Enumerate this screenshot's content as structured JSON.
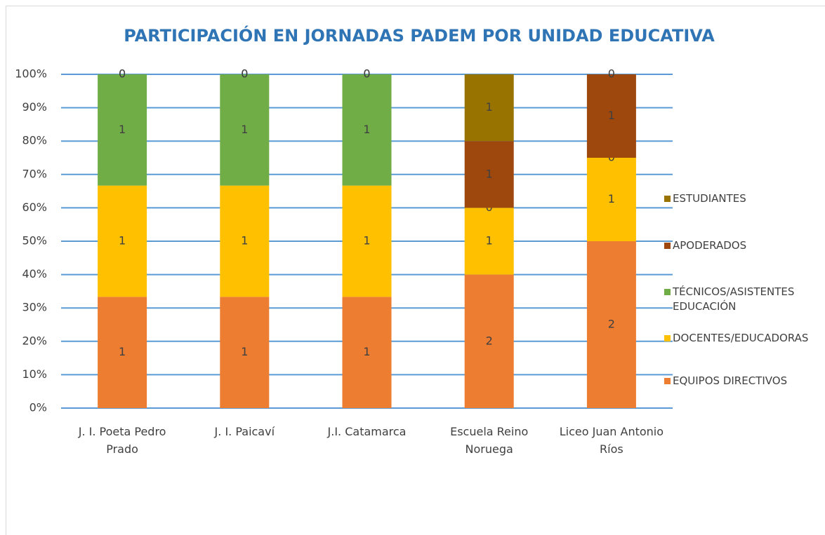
{
  "chart_data": {
    "type": "bar",
    "stacking": "percent",
    "title": "PARTICIPACIÓN EN JORNADAS PADEM POR UNIDAD EDUCATIVA",
    "categories": [
      "J. I. Poeta Pedro Prado",
      "J. I. Paicaví",
      "J.I. Catamarca",
      "Escuela Reino Noruega",
      "Liceo Juan Antonio Ríos"
    ],
    "series": [
      {
        "name": "EQUIPOS DIRECTIVOS",
        "color": "#ed7d31",
        "values": [
          1,
          1,
          1,
          2,
          2
        ]
      },
      {
        "name": "DOCENTES/EDUCADORAS",
        "color": "#ffc000",
        "values": [
          1,
          1,
          1,
          1,
          1
        ]
      },
      {
        "name": "TÉCNICOS/ASISTENTES EDUCACIÓN",
        "color": "#70ad47",
        "values": [
          1,
          1,
          1,
          0,
          0
        ]
      },
      {
        "name": "APODERADOS",
        "color": "#9e480e",
        "values": [
          0,
          0,
          0,
          1,
          1
        ]
      },
      {
        "name": "ESTUDIANTES",
        "color": "#997300",
        "values": [
          0,
          0,
          0,
          1,
          0
        ]
      }
    ],
    "ylim": [
      0,
      100
    ],
    "yticks": [
      {
        "value": 0,
        "label": "0%"
      },
      {
        "value": 10,
        "label": "10%"
      },
      {
        "value": 20,
        "label": "20%"
      },
      {
        "value": 30,
        "label": "30%"
      },
      {
        "value": 40,
        "label": "40%"
      },
      {
        "value": 50,
        "label": "50%"
      },
      {
        "value": 60,
        "label": "60%"
      },
      {
        "value": 70,
        "label": "70%"
      },
      {
        "value": 80,
        "label": "80%"
      },
      {
        "value": 90,
        "label": "90%"
      },
      {
        "value": 100,
        "label": "100%"
      }
    ],
    "grid": true,
    "legend": "right"
  }
}
